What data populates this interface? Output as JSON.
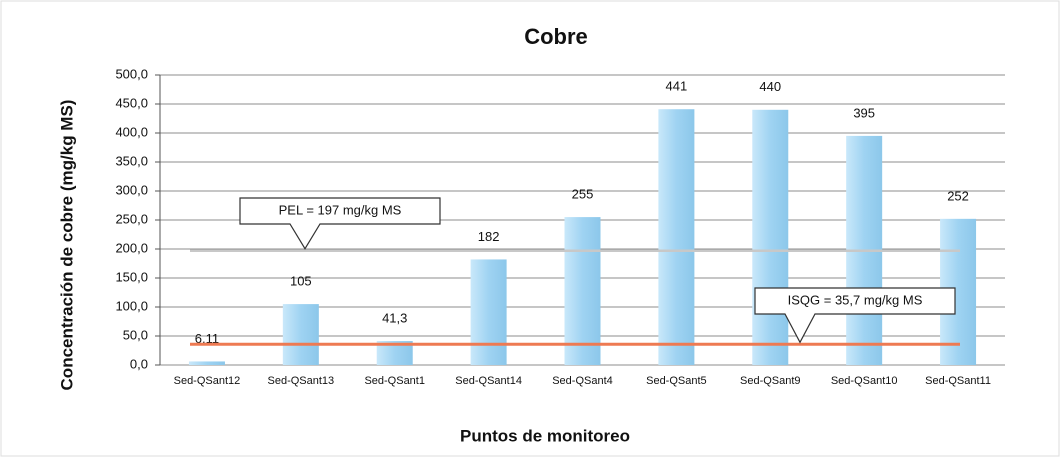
{
  "chart_data": {
    "type": "bar",
    "title": "Cobre",
    "x_label": "Puntos de monitoreo",
    "y_label": "Concentración de cobre (mg/kg MS)",
    "categories": [
      "Sed-QSant12",
      "Sed-QSant13",
      "Sed-QSant1",
      "Sed-QSant14",
      "Sed-QSant4",
      "Sed-QSant5",
      "Sed-QSant9",
      "Sed-QSant10",
      "Sed-QSant11"
    ],
    "values": [
      6.11,
      105,
      41.3,
      182,
      255,
      441,
      440,
      395,
      252
    ],
    "value_labels": [
      "6,11",
      "105",
      "41,3",
      "182",
      "255",
      "441",
      "440",
      "395",
      "252"
    ],
    "color": "#9fd3f2",
    "ylim": [
      0,
      500
    ],
    "yticks": [
      {
        "value": 0,
        "label": "0,0"
      },
      {
        "value": 50,
        "label": "50,0"
      },
      {
        "value": 100,
        "label": "100,0"
      },
      {
        "value": 150,
        "label": "150,0"
      },
      {
        "value": 200,
        "label": "200,0"
      },
      {
        "value": 250,
        "label": "250,0"
      },
      {
        "value": 300,
        "label": "300,0"
      },
      {
        "value": 350,
        "label": "350,0"
      },
      {
        "value": 400,
        "label": "400,0"
      },
      {
        "value": 450,
        "label": "450,0"
      },
      {
        "value": 500,
        "label": "500,0"
      }
    ],
    "grid": true,
    "reference_lines": [
      {
        "value": 197,
        "label": "PEL = 197 mg/kg MS",
        "color": "#c8c8c8"
      },
      {
        "value": 35.7,
        "label": "ISQG = 35,7 mg/kg MS",
        "color": "#ee7a52"
      }
    ]
  }
}
